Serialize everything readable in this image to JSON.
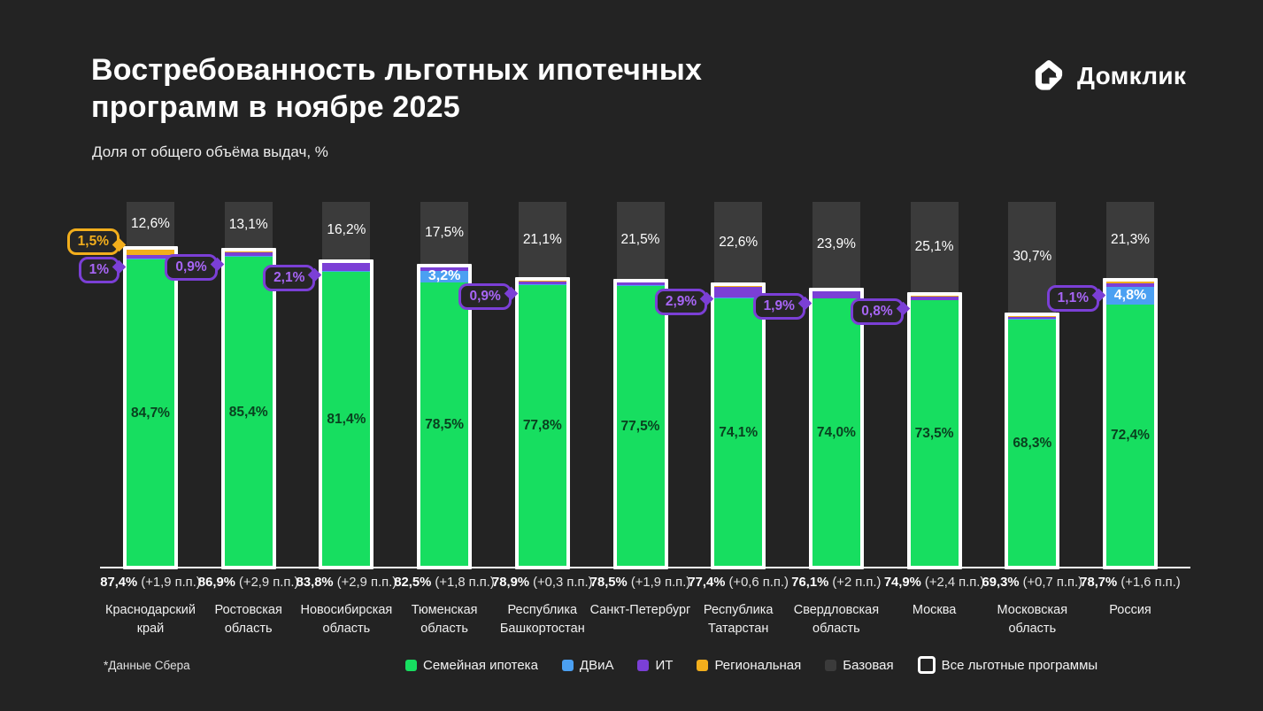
{
  "header": {
    "title_line1": "Востребованность льготных ипотечных",
    "title_line2": "программ в ноябре 2025",
    "subtitle": "Доля от общего объёма выдач, %",
    "logo_text": "Домклик"
  },
  "footnote": "*Данные Сбера",
  "colors": {
    "background": "#232323",
    "family": "#17DE60",
    "dvia": "#4BA0F2",
    "it": "#7B3FD6",
    "it_callout_text": "#A765F5",
    "regional": "#F2AE1C",
    "base": "#3B3B3B",
    "all_programs_border": "#FFFFFF",
    "callout_bg": "#262626"
  },
  "legend": [
    {
      "label": "Семейная ипотека",
      "swatch": "family"
    },
    {
      "label": "ДВиА",
      "swatch": "dvia"
    },
    {
      "label": "ИТ",
      "swatch": "it"
    },
    {
      "label": "Региональная",
      "swatch": "regional"
    },
    {
      "label": "Базовая",
      "swatch": "base"
    },
    {
      "label": "Все льготные программы",
      "swatch": "all"
    }
  ],
  "chart_data": {
    "type": "bar",
    "stacked": true,
    "unit": "%",
    "total_per_bar": 100,
    "series_order_top_to_bottom": [
      "base",
      "regional",
      "it",
      "dvia",
      "family"
    ],
    "series_names": {
      "family": "Семейная ипотека",
      "dvia": "ДВиА",
      "it": "ИТ",
      "regional": "Региональная",
      "base": "Базовая",
      "all": "Все льготные программы"
    },
    "regions": [
      {
        "name": "Краснодарский край",
        "name_lines": [
          "Краснодарский",
          "край"
        ],
        "total_pref_label": "87,4%",
        "delta_label": "(+1,9 п.п.)",
        "base": 12.6,
        "base_label": "12,6%",
        "family": 84.7,
        "family_label": "84,7%",
        "dvia": 0.2,
        "it": 1.0,
        "regional": 1.5,
        "callouts": [
          {
            "segment": "regional",
            "label": "1,5%",
            "placement": "left"
          },
          {
            "segment": "it",
            "label": "1%",
            "placement": "left"
          }
        ]
      },
      {
        "name": "Ростовская область",
        "name_lines": [
          "Ростовская",
          "область"
        ],
        "total_pref_label": "86,9%",
        "delta_label": "(+2,9 п.п.)",
        "base": 13.1,
        "base_label": "13,1%",
        "family": 85.4,
        "family_label": "85,4%",
        "dvia": 0.3,
        "it": 0.9,
        "regional": 0.3,
        "callouts": [
          {
            "segment": "it",
            "label": "0,9%",
            "placement": "left"
          }
        ]
      },
      {
        "name": "Новосибирская область",
        "name_lines": [
          "Новосибирская",
          "область"
        ],
        "total_pref_label": "83,8%",
        "delta_label": "(+2,9 п.п.)",
        "base": 16.2,
        "base_label": "16,2%",
        "family": 81.4,
        "family_label": "81,4%",
        "dvia": 0.2,
        "it": 2.1,
        "regional": 0.1,
        "callouts": [
          {
            "segment": "it",
            "label": "2,1%",
            "placement": "left"
          }
        ]
      },
      {
        "name": "Тюменская область",
        "name_lines": [
          "Тюменская",
          "область"
        ],
        "total_pref_label": "82,5%",
        "delta_label": "(+1,8 п.п.)",
        "base": 17.5,
        "base_label": "17,5%",
        "family": 78.5,
        "family_label": "78,5%",
        "dvia": 3.2,
        "it": 0.8,
        "regional": 0.0,
        "callouts": [
          {
            "segment": "dvia",
            "label": "3,2%",
            "placement": "onbar"
          }
        ]
      },
      {
        "name": "Республика Башкортостан",
        "name_lines": [
          "Республика",
          "Башкортостан"
        ],
        "total_pref_label": "78,9%",
        "delta_label": "(+0,3 п.п.)",
        "base": 21.1,
        "base_label": "21,1%",
        "family": 77.8,
        "family_label": "77,8%",
        "dvia": 0.1,
        "it": 0.9,
        "regional": 0.1,
        "callouts": [
          {
            "segment": "it",
            "label": "0,9%",
            "placement": "left"
          }
        ]
      },
      {
        "name": "Санкт-Петербург",
        "name_lines": [
          "Санкт-Петербург"
        ],
        "total_pref_label": "78,5%",
        "delta_label": "(+1,9 п.п.)",
        "base": 21.5,
        "base_label": "21,5%",
        "family": 77.5,
        "family_label": "77,5%",
        "dvia": 0.2,
        "it": 0.7,
        "regional": 0.1,
        "callouts": []
      },
      {
        "name": "Республика Татарстан",
        "name_lines": [
          "Республика",
          "Татарстан"
        ],
        "total_pref_label": "77,4%",
        "delta_label": "(+0,6 п.п.)",
        "base": 22.6,
        "base_label": "22,6%",
        "family": 74.1,
        "family_label": "74,1%",
        "dvia": 0.3,
        "it": 2.9,
        "regional": 0.1,
        "callouts": [
          {
            "segment": "it",
            "label": "2,9%",
            "placement": "left"
          }
        ]
      },
      {
        "name": "Свердловская область",
        "name_lines": [
          "Свердловская",
          "область"
        ],
        "total_pref_label": "76,1%",
        "delta_label": "(+2 п.п.)",
        "base": 23.9,
        "base_label": "23,9%",
        "family": 74.0,
        "family_label": "74,0%",
        "dvia": 0.1,
        "it": 1.9,
        "regional": 0.1,
        "callouts": [
          {
            "segment": "it",
            "label": "1,9%",
            "placement": "left"
          }
        ]
      },
      {
        "name": "Москва",
        "name_lines": [
          "Москва"
        ],
        "total_pref_label": "74,9%",
        "delta_label": "(+2,4 п.п.)",
        "base": 25.1,
        "base_label": "25,1%",
        "family": 73.5,
        "family_label": "73,5%",
        "dvia": 0.2,
        "it": 0.8,
        "regional": 0.4,
        "callouts": [
          {
            "segment": "it",
            "label": "0,8%",
            "placement": "left"
          }
        ]
      },
      {
        "name": "Московская область",
        "name_lines": [
          "Московская",
          "область"
        ],
        "total_pref_label": "69,3%",
        "delta_label": "(+0,7 п.п.)",
        "base": 30.7,
        "base_label": "30,7%",
        "family": 68.3,
        "family_label": "68,3%",
        "dvia": 0.2,
        "it": 0.6,
        "regional": 0.2,
        "callouts": []
      },
      {
        "name": "Россия",
        "name_lines": [
          "Россия"
        ],
        "total_pref_label": "78,7%",
        "delta_label": "(+1,6 п.п.)",
        "base": 21.3,
        "base_label": "21,3%",
        "family": 72.4,
        "family_label": "72,4%",
        "dvia": 4.8,
        "it": 1.1,
        "regional": 0.4,
        "callouts": [
          {
            "segment": "it",
            "label": "1,1%",
            "placement": "left"
          },
          {
            "segment": "dvia",
            "label": "4,8%",
            "placement": "onbar"
          }
        ]
      }
    ]
  }
}
